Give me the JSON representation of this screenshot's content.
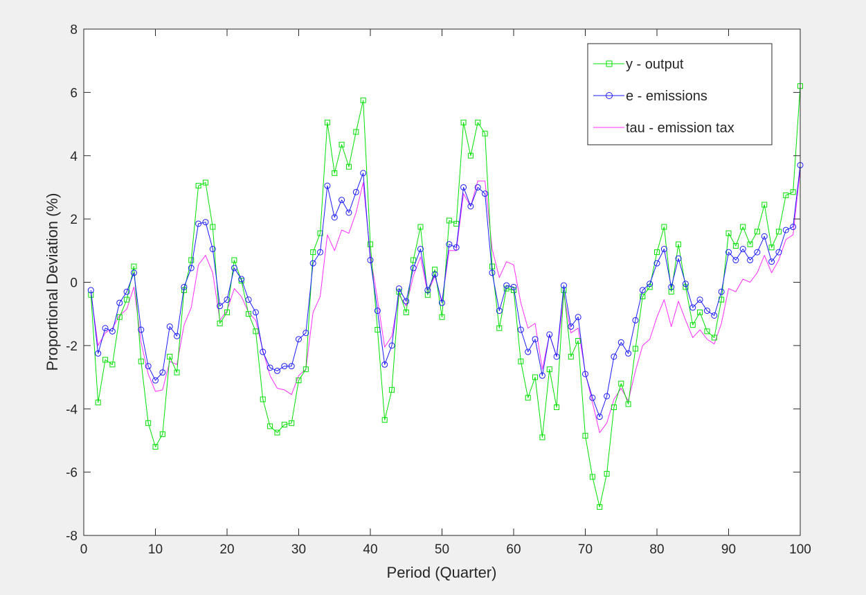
{
  "chart_data": {
    "type": "line",
    "title": "",
    "xlabel": "Period (Quarter)",
    "ylabel": "Proportional Deviation (%)",
    "xlim": [
      0,
      100
    ],
    "ylim": [
      -8,
      8
    ],
    "xticks": [
      0,
      10,
      20,
      30,
      40,
      50,
      60,
      70,
      80,
      90,
      100
    ],
    "yticks": [
      -8,
      -6,
      -4,
      -2,
      0,
      2,
      4,
      6,
      8
    ],
    "grid": false,
    "legend_position": "top-right",
    "x": [
      1,
      2,
      3,
      4,
      5,
      6,
      7,
      8,
      9,
      10,
      11,
      12,
      13,
      14,
      15,
      16,
      17,
      18,
      19,
      20,
      21,
      22,
      23,
      24,
      25,
      26,
      27,
      28,
      29,
      30,
      31,
      32,
      33,
      34,
      35,
      36,
      37,
      38,
      39,
      40,
      41,
      42,
      43,
      44,
      45,
      46,
      47,
      48,
      49,
      50,
      51,
      52,
      53,
      54,
      55,
      56,
      57,
      58,
      59,
      60,
      61,
      62,
      63,
      64,
      65,
      66,
      67,
      68,
      69,
      70,
      71,
      72,
      73,
      74,
      75,
      76,
      77,
      78,
      79,
      80,
      81,
      82,
      83,
      84,
      85,
      86,
      87,
      88,
      89,
      90,
      91,
      92,
      93,
      94,
      95,
      96,
      97,
      98,
      99,
      100
    ],
    "series": [
      {
        "name": "y - output",
        "color": "#00e000",
        "marker": "square",
        "values": [
          -0.4,
          -3.8,
          -2.45,
          -2.6,
          -1.1,
          -0.55,
          0.5,
          -2.5,
          -4.45,
          -5.2,
          -4.8,
          -2.35,
          -2.85,
          -0.25,
          0.7,
          3.05,
          3.15,
          1.75,
          -1.3,
          -0.95,
          0.7,
          0.05,
          -1.0,
          -1.55,
          -3.7,
          -4.55,
          -4.75,
          -4.5,
          -4.45,
          -3.1,
          -2.75,
          0.95,
          1.55,
          5.05,
          3.45,
          4.35,
          3.65,
          4.75,
          5.75,
          1.2,
          -1.5,
          -4.35,
          -3.4,
          -0.3,
          -0.95,
          0.7,
          1.75,
          -0.4,
          0.4,
          -1.1,
          1.95,
          1.85,
          5.05,
          4.0,
          5.05,
          4.7,
          0.5,
          -1.45,
          -0.2,
          -0.25,
          -2.5,
          -3.65,
          -3.0,
          -4.9,
          -2.75,
          -3.95,
          -0.25,
          -2.35,
          -1.85,
          -4.85,
          -6.15,
          -7.1,
          -6.05,
          -3.95,
          -3.2,
          -3.85,
          -2.1,
          -0.45,
          -0.15,
          0.95,
          1.75,
          -0.3,
          1.2,
          -0.15,
          -1.35,
          -0.95,
          -1.55,
          -1.75,
          -0.55,
          1.55,
          1.15,
          1.75,
          1.2,
          1.6,
          2.45,
          1.1,
          1.6,
          2.75,
          2.85,
          6.2
        ]
      },
      {
        "name": "e - emissions",
        "color": "#1a1aff",
        "marker": "circle",
        "values": [
          -0.25,
          -2.25,
          -1.45,
          -1.55,
          -0.65,
          -0.3,
          0.3,
          -1.5,
          -2.65,
          -3.1,
          -2.85,
          -1.4,
          -1.7,
          -0.15,
          0.45,
          1.85,
          1.9,
          1.05,
          -0.75,
          -0.55,
          0.45,
          0.1,
          -0.55,
          -0.95,
          -2.2,
          -2.7,
          -2.8,
          -2.65,
          -2.65,
          -1.8,
          -1.6,
          0.6,
          0.95,
          3.05,
          2.05,
          2.6,
          2.2,
          2.85,
          3.45,
          0.7,
          -0.9,
          -2.6,
          -2.0,
          -0.2,
          -0.6,
          0.45,
          1.05,
          -0.25,
          0.25,
          -0.65,
          1.2,
          1.1,
          3.0,
          2.4,
          3.0,
          2.8,
          0.3,
          -0.9,
          -0.1,
          -0.15,
          -1.5,
          -2.2,
          -1.8,
          -2.95,
          -1.65,
          -2.35,
          -0.1,
          -1.4,
          -1.1,
          -2.9,
          -3.65,
          -4.25,
          -3.6,
          -2.35,
          -1.9,
          -2.25,
          -1.2,
          -0.25,
          -0.05,
          0.6,
          1.05,
          -0.15,
          0.75,
          -0.05,
          -0.8,
          -0.55,
          -0.9,
          -1.05,
          -0.3,
          0.95,
          0.7,
          1.05,
          0.7,
          0.95,
          1.45,
          0.65,
          0.95,
          1.65,
          1.75,
          3.7
        ]
      },
      {
        "name": "tau - emission tax",
        "color": "#ff2bff",
        "marker": "none",
        "values": [
          -0.35,
          -2.0,
          -1.6,
          -1.45,
          -1.05,
          -0.85,
          -0.15,
          -1.9,
          -2.9,
          -3.45,
          -3.4,
          -2.5,
          -2.6,
          -1.35,
          -0.8,
          0.55,
          0.85,
          0.3,
          -1.2,
          -0.9,
          -0.2,
          -0.45,
          -0.95,
          -1.2,
          -2.15,
          -2.95,
          -3.35,
          -3.4,
          -3.55,
          -2.95,
          -2.75,
          -0.95,
          -0.45,
          1.5,
          1.0,
          1.65,
          1.55,
          2.2,
          3.15,
          0.85,
          -0.55,
          -2.05,
          -1.7,
          -0.4,
          -0.75,
          0.2,
          0.8,
          -0.35,
          0.2,
          -0.6,
          1.0,
          1.0,
          2.8,
          2.4,
          3.2,
          3.2,
          1.05,
          0.15,
          0.65,
          0.55,
          -0.65,
          -1.45,
          -1.3,
          -2.75,
          -1.65,
          -2.35,
          -0.4,
          -1.6,
          -1.45,
          -2.85,
          -3.8,
          -4.75,
          -4.45,
          -3.7,
          -3.35,
          -3.75,
          -2.8,
          -2.0,
          -1.8,
          -1.1,
          -0.55,
          -1.4,
          -0.6,
          -1.2,
          -1.75,
          -1.5,
          -1.8,
          -1.95,
          -1.3,
          -0.2,
          -0.3,
          0.1,
          0.0,
          0.3,
          0.85,
          0.3,
          0.7,
          1.35,
          1.5,
          3.55
        ]
      }
    ]
  }
}
